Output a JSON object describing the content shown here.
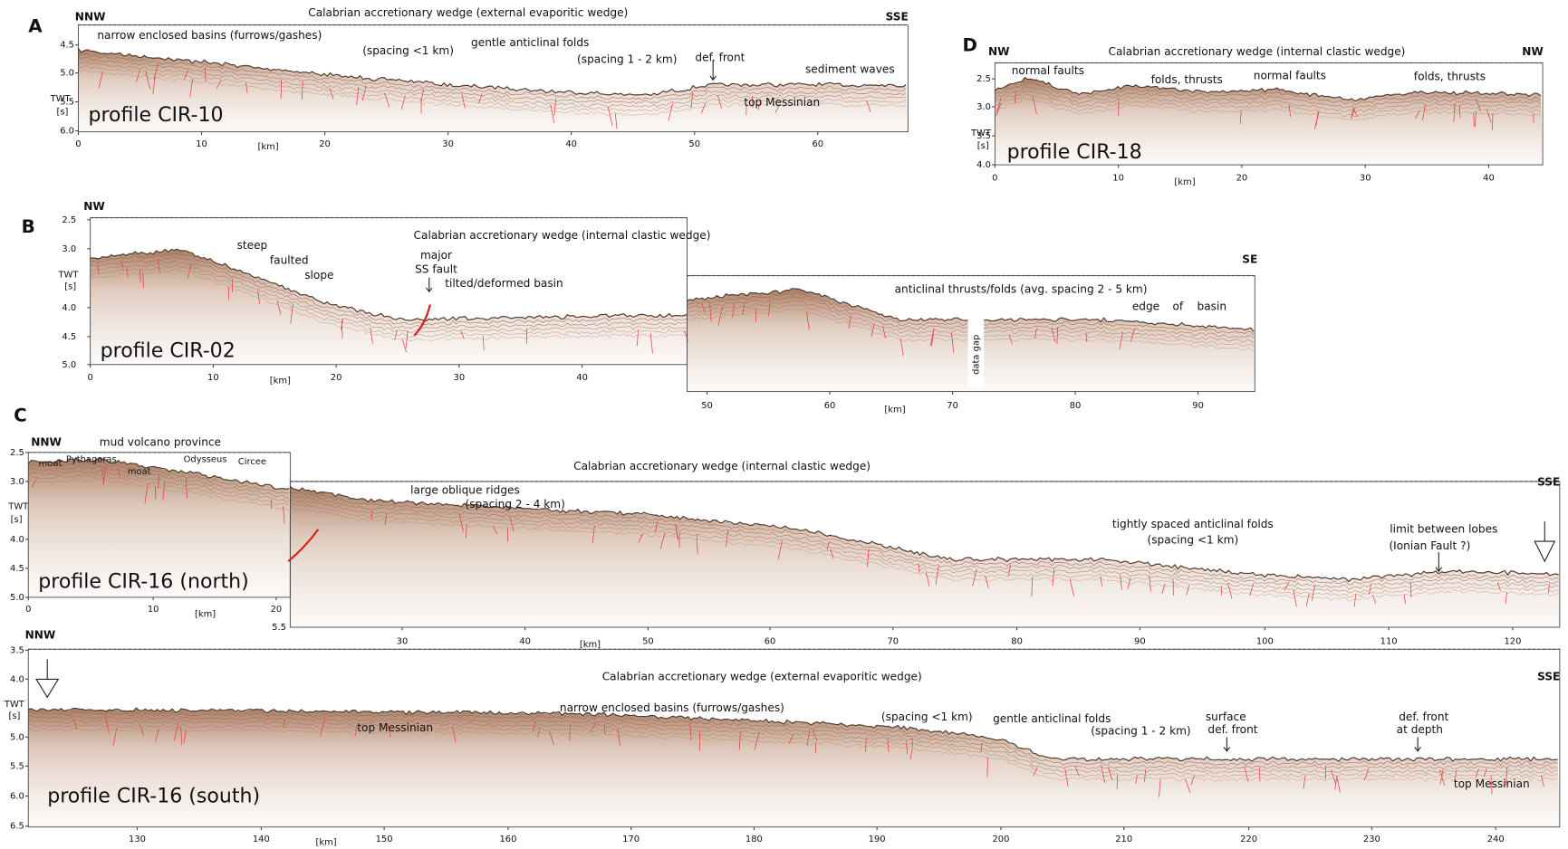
{
  "A": {
    "letter": "A",
    "left": "NNW",
    "right": "SSE",
    "title": "Calabrian accretionary wedge (external evaporitic wedge)",
    "profile": "profile CIR-10",
    "twt": "TWT",
    "unit": "[s]",
    "km": "[km]",
    "yticks": [
      "4.5",
      "5.0",
      "5.5",
      "6.0"
    ],
    "xticks": [
      "0",
      "10",
      "20",
      "30",
      "40",
      "50",
      "60"
    ],
    "notes": [
      "narrow enclosed basins (furrows/gashes)",
      "(spacing <1 km)",
      "gentle anticlinal folds",
      "(spacing 1 - 2 km)",
      "def. front",
      "sediment waves",
      "top Messinian"
    ]
  },
  "B": {
    "letter": "B",
    "left": "NW",
    "right": "SE",
    "title": "Calabrian accretionary wedge (internal clastic wedge)",
    "profile": "profile CIR-02",
    "twt": "TWT",
    "unit": "[s]",
    "km": "[km]",
    "km_right": "[km]",
    "yticks": [
      "2.5",
      "3.0",
      "4.0",
      "4.5",
      "5.0"
    ],
    "xticks": [
      "0",
      "10",
      "20",
      "30",
      "40"
    ],
    "xticks_right": [
      "50",
      "60",
      "70",
      "80",
      "90"
    ],
    "notes": [
      "steep",
      "faulted",
      "slope",
      "major",
      "SS fault",
      "tilted/deformed basin",
      "anticlinal thrusts/folds (avg. spacing 2 - 5 km)",
      "edge",
      "of",
      "basin"
    ],
    "data_gap": "data gap"
  },
  "C": {
    "letter": "C",
    "north": {
      "left": "NNW",
      "province": "mud volcano province",
      "profile": "profile CIR-16 (north)",
      "twt": "TWT",
      "unit": "[s]",
      "km": "[km]",
      "yticks": [
        "2.5",
        "3.0",
        "4.0",
        "4.5",
        "5.0"
      ],
      "xticks": [
        "0",
        "10",
        "20"
      ],
      "notes": [
        "moat",
        "Pythagoras",
        "moat",
        "Odysseus",
        "Circee"
      ]
    },
    "main": {
      "title": "Calabrian accretionary wedge (internal clastic wedge)",
      "right": "SSE",
      "ytick": "5.5",
      "km": "[km]",
      "xticks": [
        "30",
        "40",
        "50",
        "60",
        "70",
        "80",
        "90",
        "100",
        "110",
        "120"
      ],
      "notes": [
        "large oblique ridges",
        "(spacing 2 - 4 km)",
        "tightly spaced anticlinal folds",
        "(spacing <1 km)",
        "limit between lobes",
        "(Ionian Fault ?)"
      ]
    },
    "south": {
      "left": "NNW",
      "right": "SSE",
      "title": "Calabrian accretionary wedge (external evaporitic wedge)",
      "profile": "profile CIR-16 (south)",
      "twt": "TWT",
      "unit": "[s]",
      "km": "[km]",
      "yticks": [
        "3.5",
        "4.0",
        "5.0",
        "5.5",
        "6.0",
        "6.5"
      ],
      "xticks": [
        "130",
        "140",
        "150",
        "160",
        "170",
        "180",
        "190",
        "200",
        "210",
        "220",
        "230",
        "240"
      ],
      "notes": [
        "narrow enclosed basins (furrows/gashes)",
        "top Messinian",
        "(spacing <1 km)",
        "gentle anticlinal folds",
        "(spacing 1 - 2 km)",
        "surface",
        "def. front",
        "def. front",
        "at depth",
        "top Messinian"
      ]
    }
  },
  "D": {
    "letter": "D",
    "left": "NW",
    "right": "NW",
    "title": "Calabrian accretionary wedge (internal clastic wedge)",
    "profile": "profile CIR-18",
    "twt": "TWT",
    "unit": "[s]",
    "km": "[km]",
    "yticks": [
      "2.5",
      "3.0",
      "3.5",
      "4.0"
    ],
    "xticks": [
      "0",
      "10",
      "20",
      "30",
      "40"
    ],
    "notes": [
      "normal faults",
      "folds, thrusts",
      "normal faults",
      "folds, thrusts"
    ]
  }
}
